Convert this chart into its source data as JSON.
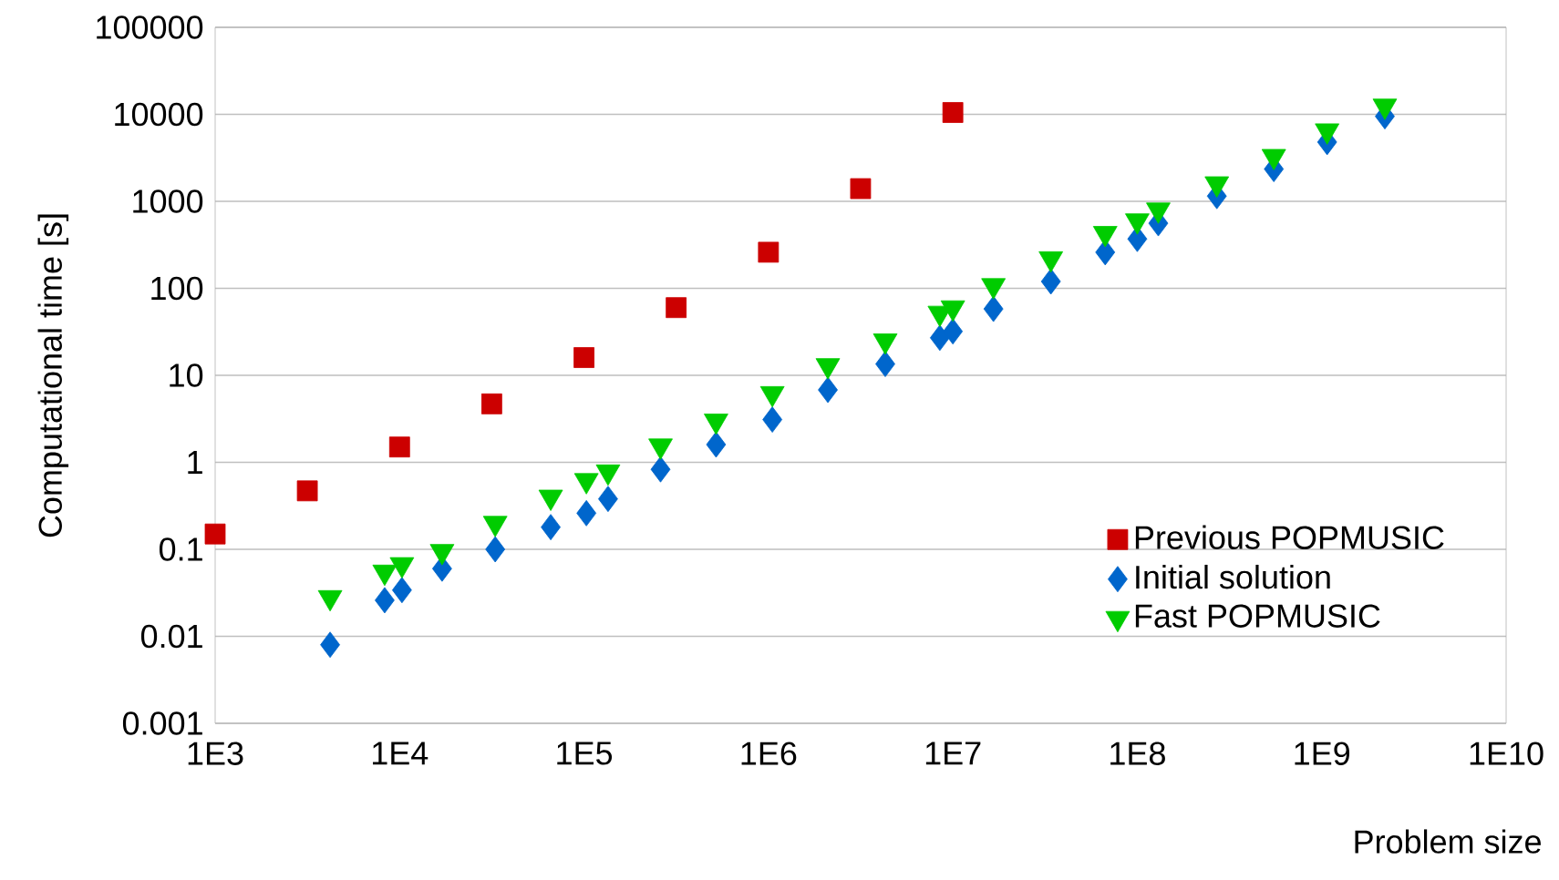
{
  "chart_data": {
    "type": "scatter",
    "xlabel": "Problem size",
    "ylabel": "Computational time [s]",
    "log": "xy",
    "grid": "y",
    "legend": "bottom right",
    "xlim": [
      1000,
      10000000000
    ],
    "ylim": [
      0.001,
      100000
    ],
    "xticks": [
      {
        "value": 1000,
        "label": "1E3"
      },
      {
        "value": 10000,
        "label": "1E4"
      },
      {
        "value": 100000,
        "label": "1E5"
      },
      {
        "value": 1000000,
        "label": "1E6"
      },
      {
        "value": 10000000,
        "label": "1E7"
      },
      {
        "value": 100000000,
        "label": "1E8"
      },
      {
        "value": 1000000000,
        "label": "1E9"
      },
      {
        "value": 10000000000,
        "label": "1E10"
      }
    ],
    "yticks": [
      0.001,
      0.01,
      0.1,
      1,
      10,
      100,
      1000,
      10000,
      100000
    ],
    "series": [
      {
        "name": "Previous POPMUSIC",
        "color": "#cc0000",
        "marker": "square",
        "x": [
          1000,
          3160,
          10000,
          31600,
          100000,
          316000,
          1000000,
          3160000,
          10000000
        ],
        "values": [
          0.15,
          0.47,
          1.5,
          4.7,
          16,
          60,
          260,
          1400,
          10500
        ]
      },
      {
        "name": "Initial solution",
        "color": "#0066cc",
        "marker": "diamond",
        "x": [
          4200,
          8300,
          10300,
          17000,
          33000,
          66000,
          103000,
          135000,
          260000,
          520000,
          1050000,
          2100000,
          4300000,
          8500000,
          10000000,
          16600000,
          34000000,
          67000000,
          100000000,
          130000000,
          270000000,
          550000000,
          1070000000,
          2200000000
        ],
        "values": [
          0.008,
          0.026,
          0.034,
          0.06,
          0.1,
          0.18,
          0.26,
          0.38,
          0.83,
          1.6,
          3.1,
          6.8,
          13.5,
          27,
          32,
          58,
          120,
          260,
          370,
          560,
          1150,
          2350,
          4800,
          9500
        ]
      },
      {
        "name": "Fast POPMUSIC",
        "color": "#00cc00",
        "marker": "triangle",
        "x": [
          4200,
          8300,
          10300,
          17000,
          33000,
          66000,
          103000,
          135000,
          260000,
          520000,
          1050000,
          2100000,
          4300000,
          8500000,
          10000000,
          16600000,
          34000000,
          67000000,
          100000000,
          130000000,
          270000000,
          550000000,
          1070000000,
          2200000000
        ],
        "values": [
          0.028,
          0.055,
          0.067,
          0.095,
          0.2,
          0.4,
          0.62,
          0.78,
          1.55,
          3.0,
          6.2,
          13,
          25,
          52,
          60,
          108,
          220,
          430,
          600,
          800,
          1600,
          3300,
          6500,
          12500
        ]
      }
    ]
  }
}
